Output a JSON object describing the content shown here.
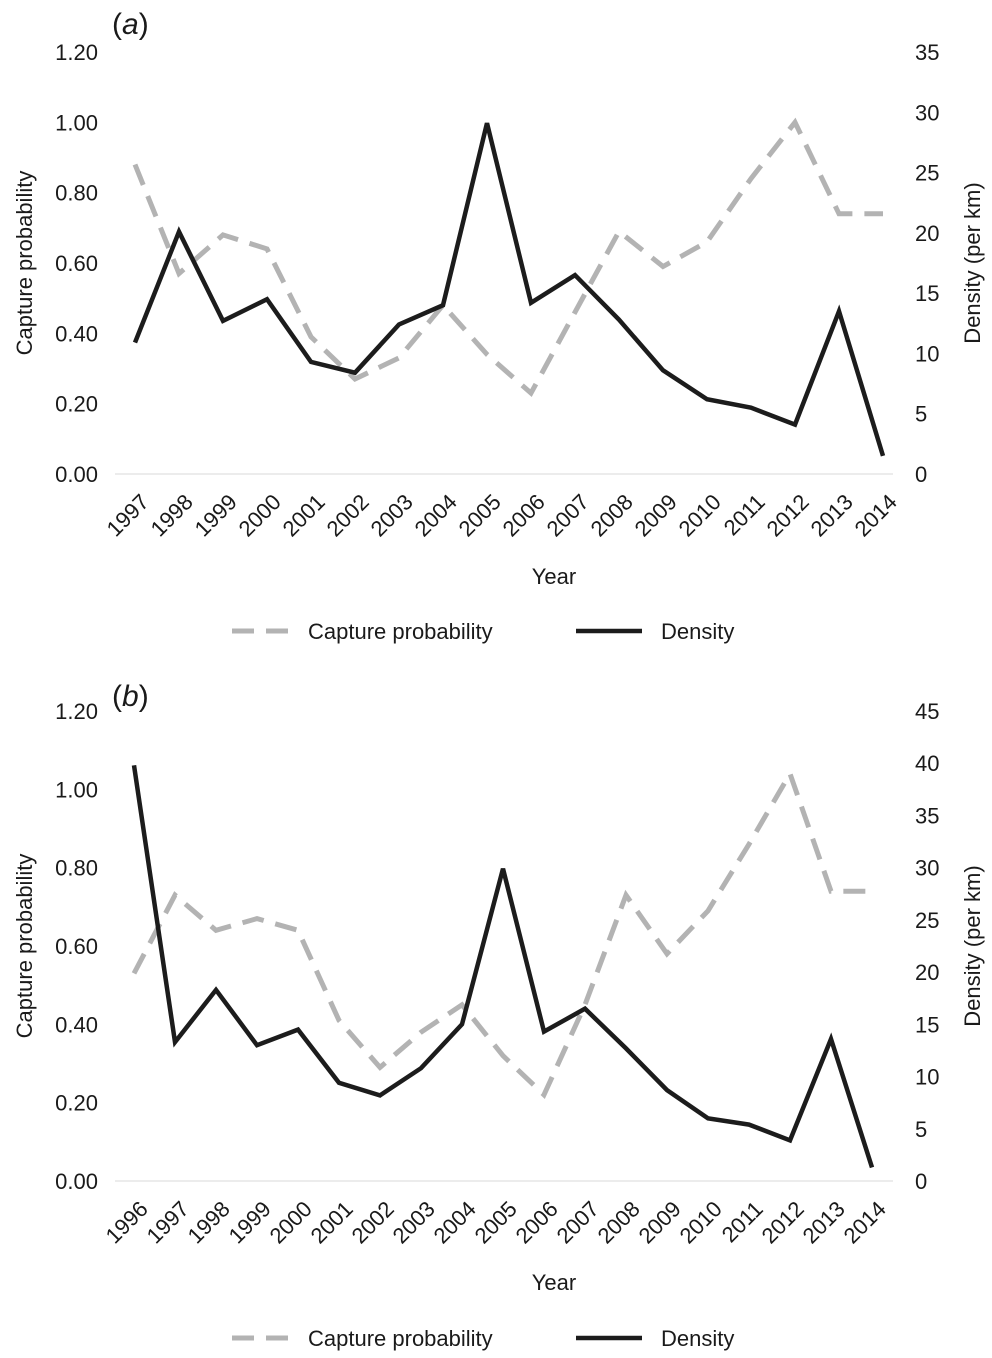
{
  "colors": {
    "capture": "#b3b3b3",
    "density": "#1c1c1c",
    "baseline": "#e6e6e6"
  },
  "chart_data": [
    {
      "type": "line",
      "panel_label": "(a)",
      "panel_letter": "a",
      "x": [
        "1997",
        "1998",
        "1999",
        "2000",
        "2001",
        "2002",
        "2003",
        "2004",
        "2005",
        "2006",
        "2007",
        "2008",
        "2009",
        "2010",
        "2011",
        "2012",
        "2013",
        "2014"
      ],
      "xlabel": "Year",
      "ylabel": "Capture probability",
      "y2label": "Density (per km)",
      "ylim": [
        0,
        1.2
      ],
      "yticks": [
        "0.00",
        "0.20",
        "0.40",
        "0.60",
        "0.80",
        "1.00",
        "1.20"
      ],
      "y2lim": [
        0,
        35
      ],
      "y2ticks": [
        "0",
        "5",
        "10",
        "15",
        "20",
        "25",
        "30",
        "35"
      ],
      "series": [
        {
          "name": "Capture probability",
          "axis": "left",
          "style": "dashed",
          "values": [
            0.88,
            0.57,
            0.68,
            0.64,
            0.39,
            0.27,
            0.33,
            0.48,
            0.34,
            0.23,
            0.46,
            0.69,
            0.59,
            0.66,
            0.84,
            1.0,
            0.74,
            0.74
          ]
        },
        {
          "name": "Density",
          "axis": "right",
          "style": "solid",
          "values": [
            10.9,
            20.1,
            12.7,
            14.5,
            9.3,
            8.4,
            12.4,
            14.0,
            29.1,
            14.2,
            16.5,
            12.8,
            8.6,
            6.2,
            5.5,
            4.1,
            13.5,
            1.5
          ]
        }
      ],
      "legend": [
        "Capture probability",
        "Density"
      ],
      "legend_position": "bottom",
      "grid": false
    },
    {
      "type": "line",
      "panel_label": "(b)",
      "panel_letter": "b",
      "x": [
        "1996",
        "1997",
        "1998",
        "1999",
        "2000",
        "2001",
        "2002",
        "2003",
        "2004",
        "2005",
        "2006",
        "2007",
        "2008",
        "2009",
        "2010",
        "2011",
        "2012",
        "2013",
        "2014"
      ],
      "xlabel": "Year",
      "ylabel": "Capture probability",
      "y2label": "Density (per km)",
      "ylim": [
        0,
        1.2
      ],
      "yticks": [
        "0.00",
        "0.20",
        "0.40",
        "0.60",
        "0.80",
        "1.00",
        "1.20"
      ],
      "y2lim": [
        0,
        45
      ],
      "y2ticks": [
        "0",
        "5",
        "10",
        "15",
        "20",
        "25",
        "30",
        "35",
        "40",
        "45"
      ],
      "series": [
        {
          "name": "Capture probability",
          "axis": "left",
          "style": "dashed",
          "values": [
            0.53,
            0.73,
            0.64,
            0.67,
            0.64,
            0.41,
            0.29,
            0.38,
            0.45,
            0.32,
            0.22,
            0.45,
            0.73,
            0.58,
            0.69,
            0.86,
            1.04,
            0.74,
            0.74
          ]
        },
        {
          "name": "Density",
          "axis": "right",
          "style": "solid",
          "values": [
            39.8,
            13.3,
            18.3,
            13.0,
            14.5,
            9.4,
            8.2,
            10.8,
            15.0,
            29.9,
            14.3,
            16.5,
            12.7,
            8.7,
            6.0,
            5.4,
            3.9,
            13.6,
            1.3
          ]
        }
      ],
      "legend": [
        "Capture probability",
        "Density"
      ],
      "legend_position": "bottom",
      "grid": false
    }
  ]
}
